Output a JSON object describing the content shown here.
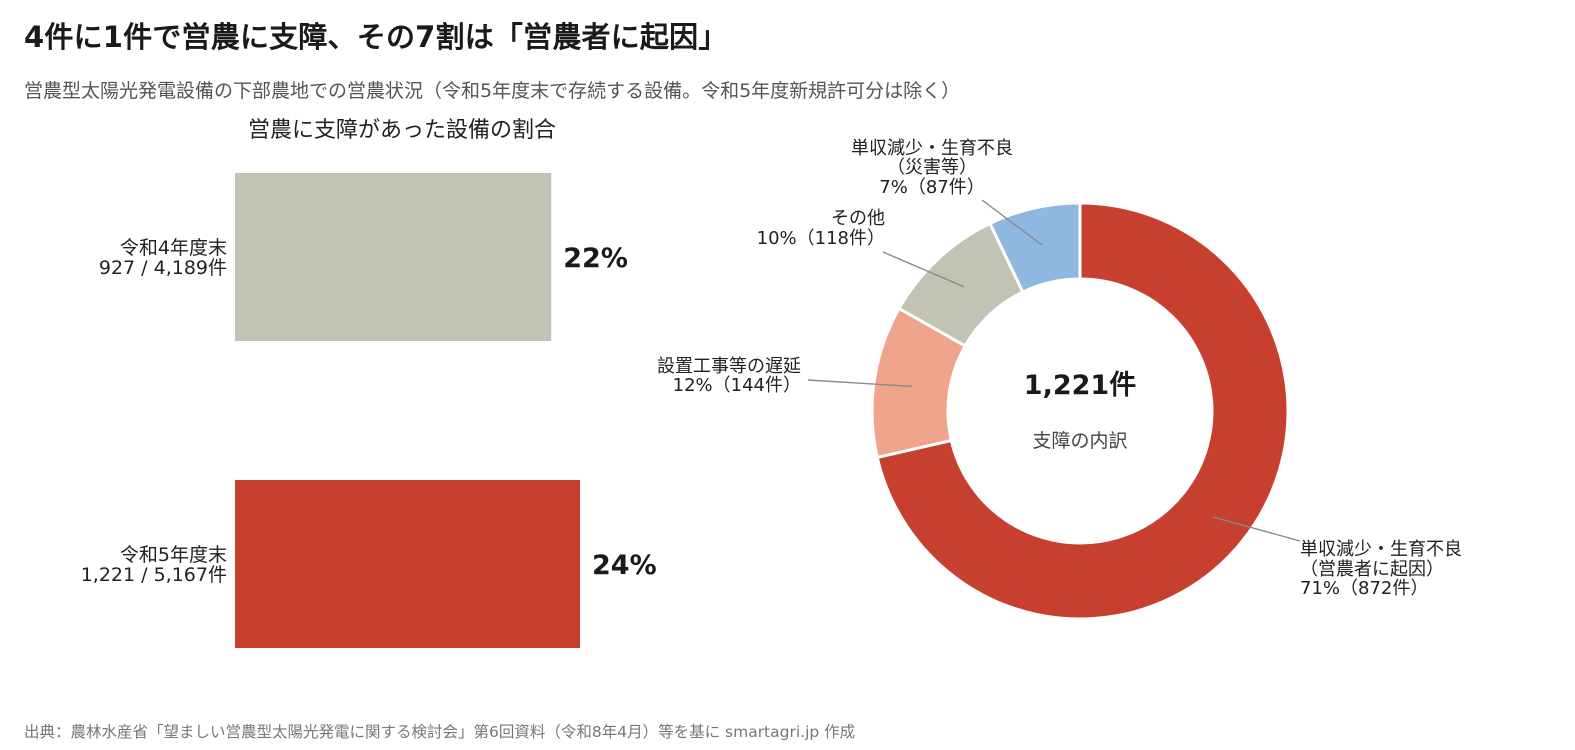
{
  "header": {
    "title": "4件に1件で営農に支障、その7割は「営農者に起因」",
    "subtitle": "営農型太陽光発電設備の下部農地での営農状況（令和5年度末で存続する設備。令和5年度新規許可分は除く）"
  },
  "footer": {
    "source": "出典：農林水産省「望ましい営農型太陽光発電に関する検討会」第6回資料（令和8年4月）等を基に smartagri.jp 作成"
  },
  "chart_data": [
    {
      "type": "bar",
      "orientation": "horizontal",
      "title": "営農に支障があった設備の割合",
      "categories": [
        [
          "令和4年度末",
          "927 / 4,189件"
        ],
        [
          "令和5年度末",
          "1,221 / 5,167件"
        ]
      ],
      "values": [
        22,
        24
      ],
      "value_labels": [
        "22%",
        "24%"
      ],
      "colors": [
        "#c2c2b5",
        "#c7402f"
      ],
      "xlim": [
        0,
        32
      ],
      "grid": false,
      "axis_visible": false
    },
    {
      "type": "pie",
      "variant": "donut",
      "center_value": "1,221件",
      "center_label": "支障の内訳",
      "start_angle": "top",
      "direction": "clockwise",
      "slices": [
        {
          "label": [
            "単収減少・生育不良",
            "（営農者に起因）",
            "71%（872件）"
          ],
          "value": 872,
          "percent": 71,
          "color": "#c7402f"
        },
        {
          "label": [
            "設置工事等の遅延",
            "12%（144件）"
          ],
          "value": 144,
          "percent": 12,
          "color": "#f0a48c"
        },
        {
          "label": [
            "その他",
            "10%（118件）"
          ],
          "value": 118,
          "percent": 10,
          "color": "#c2c2b5"
        },
        {
          "label": [
            "単収減少・生育不良",
            "（災害等）",
            "7%（87件）"
          ],
          "value": 87,
          "percent": 7,
          "color": "#8fb8e0"
        }
      ]
    }
  ]
}
